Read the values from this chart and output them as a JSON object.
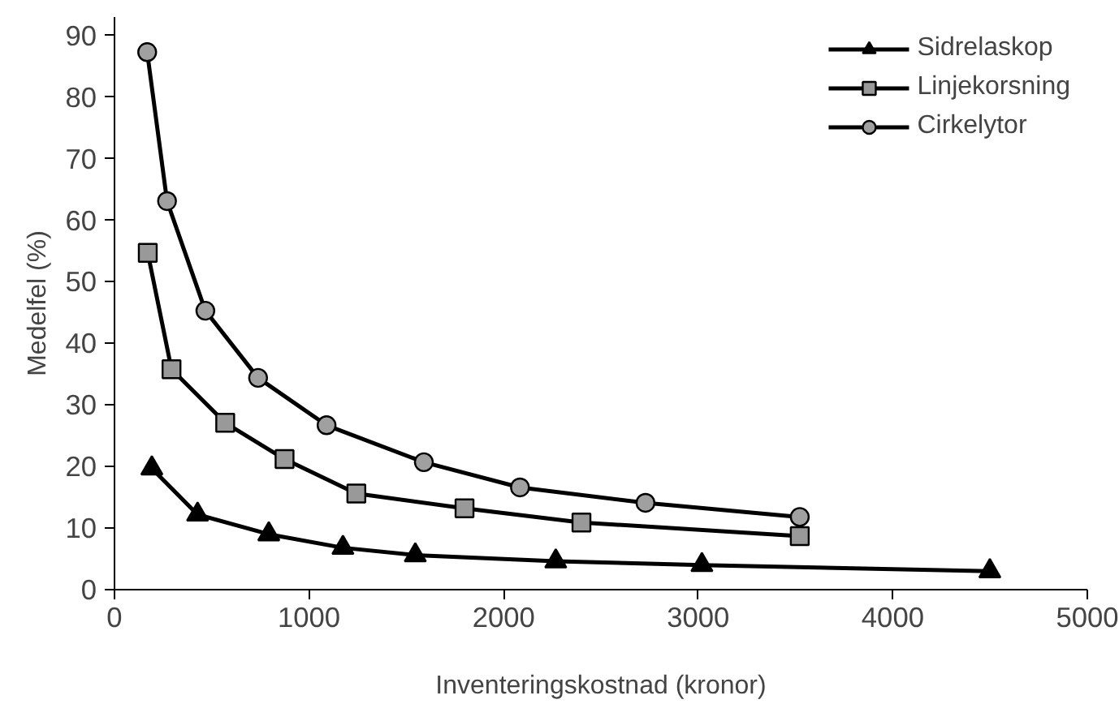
{
  "chart_data": {
    "type": "line",
    "xlabel": "Inventeringskostnad (kronor)",
    "ylabel": "Medelfel (%)",
    "xlim": [
      0,
      5000
    ],
    "xticks": [
      0,
      1000,
      2000,
      3000,
      4000,
      5000
    ],
    "ylim": [
      0,
      93
    ],
    "yticks": [
      0,
      10,
      20,
      30,
      40,
      50,
      60,
      70,
      80,
      90
    ],
    "grid": false,
    "legend": "top right",
    "line_style": "solid",
    "series": [
      {
        "name": "Sidrelaskop",
        "color": "#000000",
        "marker": "triangle",
        "x": [
          192,
          427,
          793,
          1174,
          1546,
          2268,
          3019,
          4499
        ],
        "values": [
          19.7,
          12.2,
          9.0,
          6.8,
          5.6,
          4.6,
          4.0,
          3.0
        ]
      },
      {
        "name": "Linjekorsning",
        "color": "#999999",
        "marker": "square",
        "x": [
          171,
          293,
          569,
          874,
          1243,
          1799,
          2400,
          3522
        ],
        "values": [
          54.7,
          35.8,
          27.1,
          21.2,
          15.6,
          13.2,
          10.9,
          8.7
        ]
      },
      {
        "name": "Cirkelytor",
        "color": "#a0a0a0",
        "marker": "circle",
        "x": [
          168,
          270,
          467,
          738,
          1090,
          1590,
          2084,
          2729,
          3522
        ],
        "values": [
          87.3,
          63.1,
          45.3,
          34.4,
          26.7,
          20.7,
          16.6,
          14.1,
          11.8
        ]
      }
    ]
  }
}
